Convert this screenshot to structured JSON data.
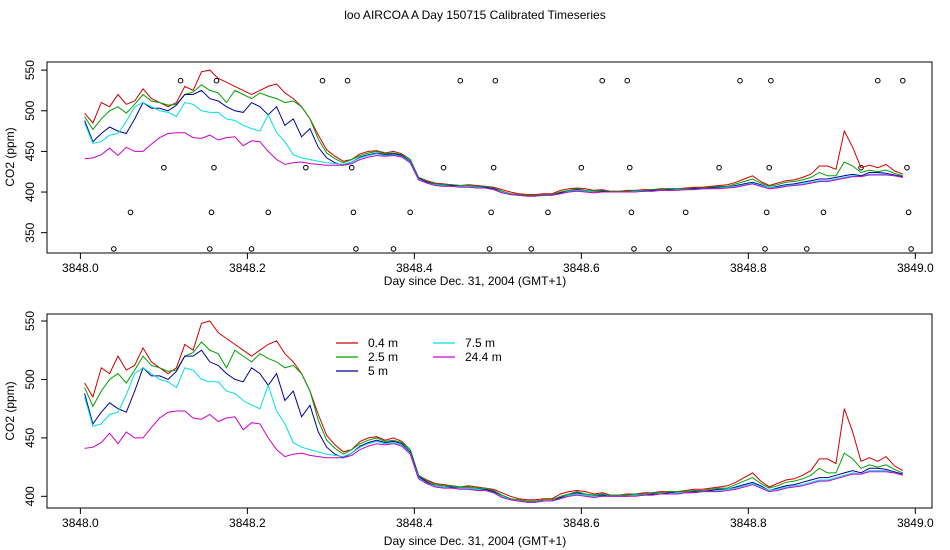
{
  "title": "loo AIRCOA A  Day 150715  Calibrated Timeseries",
  "colors": {
    "0.4 m": "#d00000",
    "2.5 m": "#00a000",
    "5 m": "#00009a",
    "7.5 m": "#00e0e0",
    "24.4 m": "#cc00cc",
    "points": "#000000"
  },
  "chart_data": [
    {
      "type": "line",
      "xlabel": "Day since Dec. 31, 2004 (GMT+1)",
      "ylabel": "CO2 (ppm)",
      "xlim": [
        3847.96,
        3849.02
      ],
      "ylim": [
        325,
        560
      ],
      "xticks": [
        3848.0,
        3848.2,
        3848.4,
        3848.6,
        3848.8,
        3849.0
      ],
      "xtick_labels": [
        "3848.0",
        "3848.2",
        "3848.4",
        "3848.6",
        "3848.8",
        "3849.0"
      ],
      "yticks": [
        350,
        400,
        450,
        500,
        550
      ],
      "ytick_labels": [
        "350",
        "400",
        "450",
        "500",
        "550"
      ],
      "points": [
        {
          "x": 3848.04,
          "y": 330
        },
        {
          "x": 3848.06,
          "y": 375
        },
        {
          "x": 3848.1,
          "y": 430
        },
        {
          "x": 3848.12,
          "y": 537
        },
        {
          "x": 3848.155,
          "y": 330
        },
        {
          "x": 3848.157,
          "y": 375
        },
        {
          "x": 3848.16,
          "y": 430
        },
        {
          "x": 3848.163,
          "y": 537
        },
        {
          "x": 3848.205,
          "y": 330
        },
        {
          "x": 3848.225,
          "y": 375
        },
        {
          "x": 3848.27,
          "y": 430
        },
        {
          "x": 3848.29,
          "y": 537
        },
        {
          "x": 3848.32,
          "y": 537
        },
        {
          "x": 3848.325,
          "y": 430
        },
        {
          "x": 3848.327,
          "y": 375
        },
        {
          "x": 3848.33,
          "y": 330
        },
        {
          "x": 3848.375,
          "y": 330
        },
        {
          "x": 3848.395,
          "y": 375
        },
        {
          "x": 3848.435,
          "y": 430
        },
        {
          "x": 3848.455,
          "y": 537
        },
        {
          "x": 3848.49,
          "y": 330
        },
        {
          "x": 3848.492,
          "y": 375
        },
        {
          "x": 3848.495,
          "y": 430
        },
        {
          "x": 3848.497,
          "y": 537
        },
        {
          "x": 3848.54,
          "y": 330
        },
        {
          "x": 3848.56,
          "y": 375
        },
        {
          "x": 3848.6,
          "y": 430
        },
        {
          "x": 3848.625,
          "y": 537
        },
        {
          "x": 3848.655,
          "y": 537
        },
        {
          "x": 3848.658,
          "y": 430
        },
        {
          "x": 3848.66,
          "y": 375
        },
        {
          "x": 3848.663,
          "y": 330
        },
        {
          "x": 3848.705,
          "y": 330
        },
        {
          "x": 3848.725,
          "y": 375
        },
        {
          "x": 3848.765,
          "y": 430
        },
        {
          "x": 3848.79,
          "y": 537
        },
        {
          "x": 3848.82,
          "y": 330
        },
        {
          "x": 3848.822,
          "y": 375
        },
        {
          "x": 3848.825,
          "y": 430
        },
        {
          "x": 3848.827,
          "y": 537
        },
        {
          "x": 3848.87,
          "y": 330
        },
        {
          "x": 3848.89,
          "y": 375
        },
        {
          "x": 3848.935,
          "y": 430
        },
        {
          "x": 3848.955,
          "y": 537
        },
        {
          "x": 3848.985,
          "y": 537
        },
        {
          "x": 3848.99,
          "y": 430
        },
        {
          "x": 3848.992,
          "y": 375
        },
        {
          "x": 3848.995,
          "y": 330
        }
      ]
    },
    {
      "type": "line",
      "xlabel": "Day since Dec. 31, 2004 (GMT+1)",
      "ylabel": "CO2 (ppm)",
      "xlim": [
        3847.96,
        3849.02
      ],
      "ylim": [
        390,
        556
      ],
      "xticks": [
        3848.0,
        3848.2,
        3848.4,
        3848.6,
        3848.8,
        3849.0
      ],
      "xtick_labels": [
        "3848.0",
        "3848.2",
        "3848.4",
        "3848.6",
        "3848.8",
        "3849.0"
      ],
      "yticks": [
        400,
        450,
        500,
        550
      ],
      "ytick_labels": [
        "400",
        "450",
        "500",
        "550"
      ],
      "legend": {
        "placement": "top-center",
        "entries": [
          "0.4 m",
          "2.5 m",
          "5 m",
          "7.5 m",
          "24.4 m"
        ]
      }
    }
  ],
  "series_x": [
    3848.005,
    3848.015,
    3848.025,
    3848.035,
    3848.045,
    3848.055,
    3848.065,
    3848.075,
    3848.085,
    3848.095,
    3848.105,
    3848.115,
    3848.125,
    3848.135,
    3848.145,
    3848.155,
    3848.165,
    3848.175,
    3848.185,
    3848.195,
    3848.205,
    3848.215,
    3848.225,
    3848.235,
    3848.245,
    3848.255,
    3848.265,
    3848.275,
    3848.285,
    3848.295,
    3848.305,
    3848.315,
    3848.325,
    3848.335,
    3848.345,
    3848.355,
    3848.365,
    3848.375,
    3848.385,
    3848.395,
    3848.405,
    3848.415,
    3848.425,
    3848.435,
    3848.445,
    3848.455,
    3848.465,
    3848.475,
    3848.485,
    3848.495,
    3848.505,
    3848.515,
    3848.525,
    3848.535,
    3848.545,
    3848.555,
    3848.565,
    3848.575,
    3848.585,
    3848.595,
    3848.605,
    3848.615,
    3848.625,
    3848.635,
    3848.645,
    3848.655,
    3848.665,
    3848.675,
    3848.685,
    3848.695,
    3848.705,
    3848.715,
    3848.725,
    3848.735,
    3848.745,
    3848.755,
    3848.765,
    3848.775,
    3848.785,
    3848.795,
    3848.805,
    3848.815,
    3848.825,
    3848.835,
    3848.845,
    3848.855,
    3848.865,
    3848.875,
    3848.885,
    3848.895,
    3848.905,
    3848.915,
    3848.925,
    3848.935,
    3848.945,
    3848.955,
    3848.965,
    3848.975,
    3848.985
  ],
  "series": [
    {
      "name": "0.4 m",
      "values": [
        497,
        485,
        510,
        505,
        520,
        508,
        512,
        527,
        515,
        510,
        505,
        510,
        530,
        525,
        548,
        550,
        540,
        535,
        530,
        525,
        520,
        525,
        530,
        533,
        522,
        515,
        505,
        490,
        470,
        452,
        444,
        438,
        440,
        447,
        450,
        451,
        448,
        450,
        447,
        440,
        418,
        414,
        411,
        410,
        409,
        408,
        409,
        408,
        407,
        406,
        403,
        400,
        398,
        397,
        397,
        398,
        398,
        402,
        404,
        405,
        404,
        402,
        403,
        401,
        401,
        402,
        402,
        403,
        403,
        404,
        404,
        404,
        405,
        406,
        406,
        407,
        408,
        409,
        412,
        416,
        420,
        413,
        408,
        411,
        414,
        415,
        418,
        422,
        432,
        432,
        428,
        475,
        455,
        430,
        433,
        430,
        434,
        426,
        422
      ]
    },
    {
      "name": "2.5 m",
      "values": [
        493,
        477,
        490,
        500,
        505,
        497,
        508,
        520,
        512,
        510,
        507,
        508,
        520,
        523,
        532,
        525,
        522,
        510,
        525,
        520,
        515,
        522,
        518,
        515,
        510,
        512,
        505,
        490,
        465,
        448,
        441,
        436,
        440,
        445,
        448,
        450,
        447,
        448,
        446,
        440,
        418,
        413,
        410,
        409,
        409,
        408,
        408,
        407,
        407,
        405,
        401,
        398,
        397,
        396,
        396,
        397,
        397,
        400,
        402,
        404,
        402,
        401,
        402,
        401,
        401,
        401,
        402,
        402,
        403,
        403,
        404,
        404,
        404,
        405,
        405,
        406,
        407,
        407,
        410,
        413,
        416,
        411,
        407,
        409,
        412,
        413,
        415,
        418,
        424,
        420,
        420,
        437,
        432,
        424,
        427,
        425,
        427,
        423,
        420
      ]
    },
    {
      "name": "5 m",
      "values": [
        488,
        462,
        472,
        480,
        475,
        472,
        490,
        510,
        503,
        503,
        500,
        507,
        520,
        520,
        525,
        515,
        512,
        505,
        500,
        498,
        510,
        505,
        495,
        505,
        482,
        490,
        468,
        478,
        455,
        442,
        436,
        433,
        437,
        443,
        446,
        448,
        446,
        447,
        445,
        438,
        417,
        412,
        409,
        408,
        408,
        407,
        407,
        406,
        406,
        404,
        400,
        397,
        396,
        395,
        395,
        396,
        396,
        399,
        401,
        403,
        401,
        400,
        401,
        400,
        400,
        400,
        401,
        401,
        402,
        402,
        403,
        403,
        403,
        404,
        404,
        405,
        406,
        406,
        408,
        410,
        412,
        409,
        405,
        407,
        409,
        410,
        412,
        414,
        416,
        416,
        418,
        420,
        422,
        420,
        424,
        424,
        423,
        421,
        419
      ]
    },
    {
      "name": "7.5 m",
      "values": [
        485,
        460,
        462,
        470,
        472,
        487,
        505,
        510,
        505,
        500,
        498,
        493,
        510,
        508,
        500,
        498,
        498,
        490,
        488,
        482,
        478,
        475,
        495,
        473,
        462,
        446,
        442,
        440,
        438,
        436,
        435,
        434,
        437,
        442,
        445,
        447,
        445,
        446,
        444,
        437,
        416,
        411,
        409,
        408,
        407,
        407,
        407,
        406,
        405,
        403,
        400,
        397,
        396,
        395,
        395,
        396,
        396,
        398,
        401,
        402,
        401,
        400,
        400,
        400,
        400,
        400,
        401,
        401,
        401,
        402,
        402,
        403,
        403,
        403,
        404,
        404,
        405,
        406,
        407,
        409,
        411,
        408,
        405,
        406,
        408,
        409,
        410,
        412,
        414,
        414,
        416,
        418,
        420,
        419,
        422,
        422,
        422,
        420,
        418
      ]
    },
    {
      "name": "24.4 m",
      "values": [
        441,
        442,
        446,
        454,
        445,
        455,
        450,
        450,
        459,
        467,
        472,
        473,
        473,
        467,
        466,
        470,
        464,
        467,
        468,
        457,
        463,
        462,
        450,
        440,
        434,
        436,
        437,
        435,
        434,
        433,
        433,
        433,
        435,
        440,
        443,
        445,
        444,
        445,
        443,
        436,
        415,
        411,
        408,
        407,
        407,
        406,
        406,
        405,
        405,
        403,
        399,
        397,
        396,
        395,
        395,
        396,
        396,
        398,
        400,
        401,
        400,
        399,
        400,
        400,
        400,
        400,
        400,
        401,
        401,
        402,
        402,
        402,
        403,
        403,
        404,
        404,
        404,
        405,
        406,
        408,
        410,
        407,
        404,
        405,
        407,
        408,
        409,
        411,
        413,
        413,
        415,
        417,
        419,
        419,
        421,
        421,
        421,
        420,
        418
      ]
    }
  ]
}
